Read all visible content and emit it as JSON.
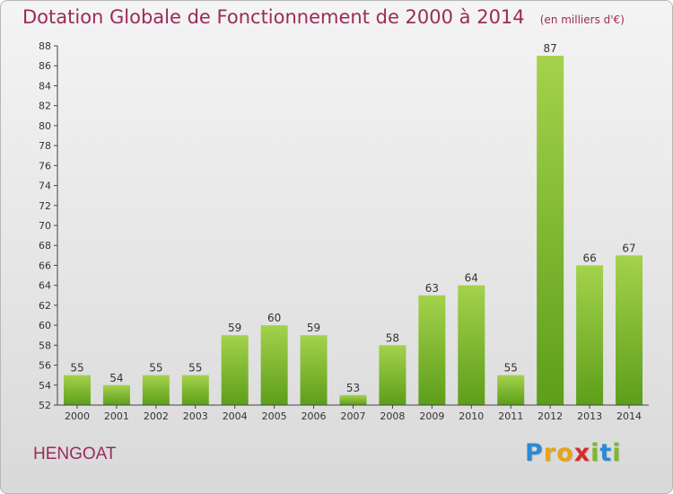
{
  "title": "Dotation Globale de Fonctionnement de 2000 à 2014",
  "unit_note": "(en milliers d'€)",
  "town": "HENGOAT",
  "logo": {
    "letters": [
      "P",
      "r",
      "o",
      "x",
      "i",
      "t",
      "i"
    ],
    "colors": [
      "#2b8ad6",
      "#e8a317",
      "#e8a317",
      "#d62b2b",
      "#7cb82b",
      "#2b8ad6",
      "#7cb82b"
    ]
  },
  "colors": {
    "bar_top": "#a4d24c",
    "bar_bottom": "#5d9e1a",
    "title": "#9b2b5a"
  },
  "chart_data": {
    "type": "bar",
    "categories": [
      "2000",
      "2001",
      "2002",
      "2003",
      "2004",
      "2005",
      "2006",
      "2007",
      "2008",
      "2009",
      "2010",
      "2011",
      "2012",
      "2013",
      "2014"
    ],
    "values": [
      55,
      54,
      55,
      55,
      59,
      60,
      59,
      53,
      58,
      63,
      64,
      55,
      87,
      66,
      67
    ],
    "ylim": [
      52,
      88
    ],
    "yticks": [
      52,
      54,
      56,
      58,
      60,
      62,
      64,
      66,
      68,
      70,
      72,
      74,
      76,
      78,
      80,
      82,
      84,
      86,
      88
    ],
    "grid": false,
    "xlabel": "",
    "ylabel": ""
  }
}
